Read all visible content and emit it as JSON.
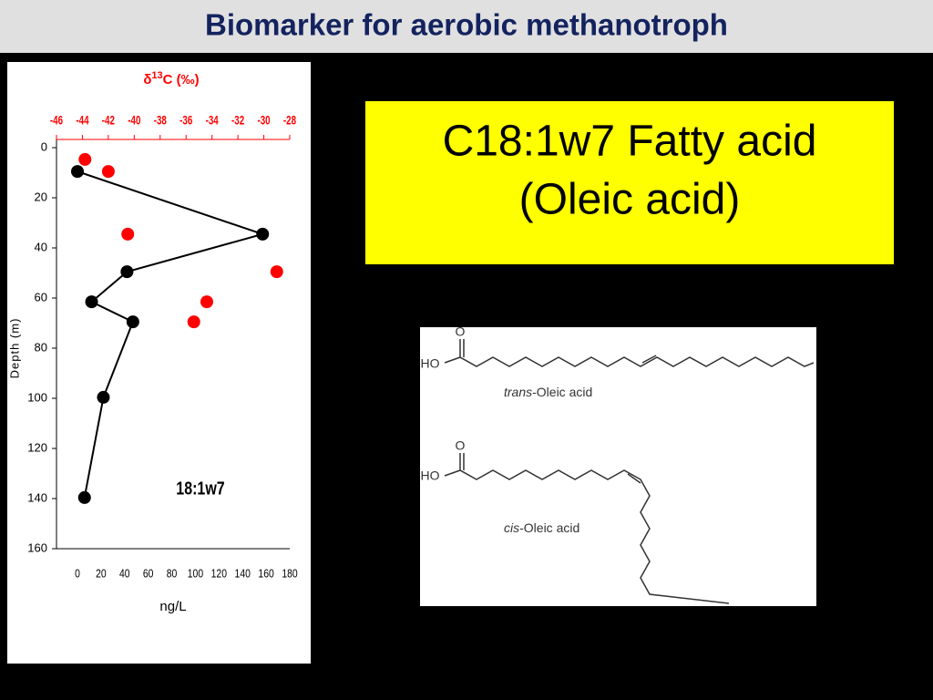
{
  "header": {
    "title": "Biomarker for aerobic methanotroph"
  },
  "chart_data": {
    "type": "line",
    "x2label": [
      "δ",
      "13",
      "C (‰)"
    ],
    "xlabel": "ng/L",
    "ylabel": "Depth (m)",
    "annotation": "18:1w7",
    "xlim": [
      0,
      180
    ],
    "xticks": [
      0,
      20,
      40,
      60,
      80,
      100,
      120,
      140,
      160,
      180
    ],
    "x2lim": [
      -46,
      -28
    ],
    "x2ticks": [
      -46,
      -44,
      -42,
      -40,
      -38,
      -36,
      -34,
      -32,
      -30,
      -28
    ],
    "x2color": "#ff0000",
    "ylim": [
      0,
      160
    ],
    "yticks": [
      0,
      20,
      40,
      60,
      80,
      100,
      120,
      140,
      160
    ],
    "y_inverted": true,
    "series": [
      {
        "color": "#000000",
        "style": "line",
        "axis": "x",
        "x": [
          0,
          157,
          42,
          12,
          47,
          22,
          6
        ],
        "values": [
          9.5,
          34.5,
          49.5,
          61.5,
          69.5,
          99.6,
          139.6
        ]
      },
      {
        "color": "#ff0000",
        "style": "markers",
        "axis": "x2",
        "x": [
          -43.8,
          -42.0,
          -40.5,
          -29.0,
          -34.4,
          -35.4
        ],
        "values": [
          4.7,
          9.5,
          34.5,
          49.5,
          61.5,
          69.5
        ]
      }
    ]
  },
  "panel": {
    "lines": [
      "C18:1w7 Fatty acid",
      "(Oleic acid)"
    ]
  },
  "structures": [
    {
      "oxygen": "O",
      "hydroxyl": "HO",
      "prefix": "trans",
      "name": "-Oleic acid"
    },
    {
      "oxygen": "O",
      "hydroxyl": "HO",
      "prefix": "cis",
      "name": "-Oleic acid"
    }
  ]
}
